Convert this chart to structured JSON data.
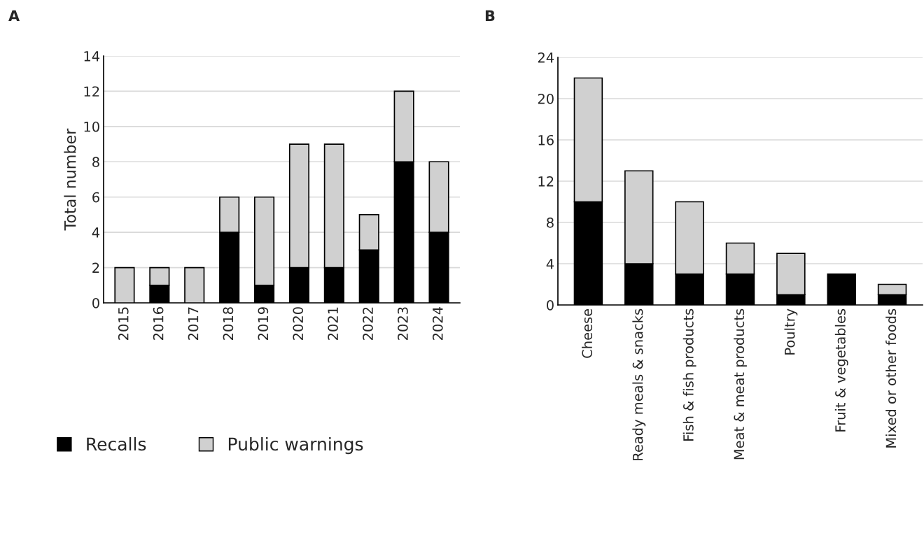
{
  "chart_data": [
    {
      "type": "bar",
      "title": "A",
      "ylabel": "Total number",
      "stacked": true,
      "categories": [
        "2015",
        "2016",
        "2017",
        "2018",
        "2019",
        "2020",
        "2021",
        "2022",
        "2023",
        "2024"
      ],
      "series": [
        {
          "name": "Recalls",
          "color": "#000000",
          "values": [
            0,
            1,
            0,
            4,
            1,
            2,
            2,
            3,
            8,
            4
          ]
        },
        {
          "name": "Public warnings",
          "color": "#d0d0d0",
          "values": [
            2,
            1,
            2,
            2,
            5,
            7,
            7,
            2,
            4,
            4
          ]
        }
      ],
      "ylim": [
        0,
        14
      ],
      "yticks": [
        0,
        2,
        4,
        6,
        8,
        10,
        12,
        14
      ],
      "grid": "y",
      "legend": "bottom"
    },
    {
      "type": "bar",
      "title": "B",
      "stacked": true,
      "categories": [
        "Cheese",
        "Ready meals & snacks",
        "Fish & fish products",
        "Meat & meat products",
        "Poultry",
        "Fruit & vegetables",
        "Mixed or other foods"
      ],
      "series": [
        {
          "color": "#000000",
          "values": [
            10,
            4,
            3,
            3,
            1,
            3,
            1
          ]
        },
        {
          "color": "#d0d0d0",
          "values": [
            12,
            9,
            7,
            3,
            4,
            0,
            1
          ]
        }
      ],
      "ylim": [
        0,
        24
      ],
      "yticks": [
        0,
        4,
        8,
        12,
        16,
        20,
        24
      ],
      "grid": "y"
    }
  ]
}
